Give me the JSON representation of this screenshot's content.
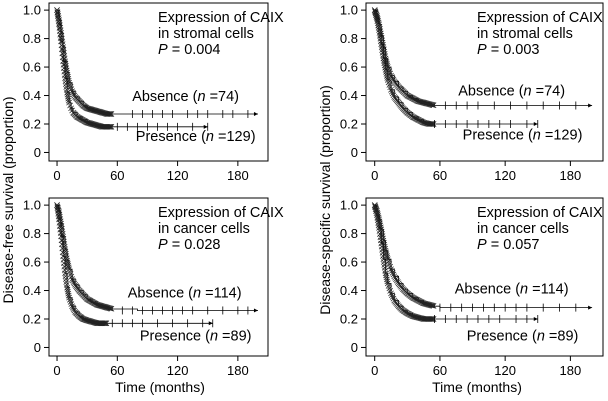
{
  "shared_ylabels": [
    "Disease-free survival (proportion)",
    "Disease-specific survival (proportion)"
  ],
  "shared_xlabel": "Time (months)",
  "chart_data": [
    {
      "type": "line",
      "subtype": "kaplan-meier",
      "ylabel": "Disease-free survival (proportion)",
      "xlabel": "",
      "xticks": [
        0,
        60,
        120,
        180
      ],
      "yticks": [
        0,
        0.2,
        0.4,
        0.6,
        0.8,
        1.0
      ],
      "ytick_labels": [
        "0",
        "0.2",
        "0.4",
        "0.6",
        "0.8",
        "1.0"
      ],
      "xlim": [
        -8,
        210
      ],
      "ylim": [
        -0.06,
        1.05
      ],
      "annotation": {
        "line1": "Expression of CAIX",
        "line2": "in stromal cells",
        "p_label": "P",
        "p_text": " = 0.004"
      },
      "series": [
        {
          "name": "Absence",
          "n": "74",
          "label_pre": "Absence (",
          "label_post": " =74)",
          "label_at": [
            128,
            0.36
          ],
          "x": [
            0,
            2,
            4,
            6,
            8,
            10,
            12,
            15,
            18,
            22,
            26,
            30,
            35,
            40,
            45,
            50,
            55,
            60,
            70,
            80,
            90,
            100,
            120,
            140,
            160,
            180,
            200
          ],
          "y": [
            1.0,
            0.93,
            0.84,
            0.74,
            0.64,
            0.56,
            0.49,
            0.43,
            0.39,
            0.36,
            0.33,
            0.31,
            0.3,
            0.29,
            0.28,
            0.27,
            0.27,
            0.27,
            0.27,
            0.27,
            0.27,
            0.27,
            0.27,
            0.27,
            0.27,
            0.27,
            0.27
          ],
          "censor_x": [
            75,
            85,
            95,
            105,
            115,
            130,
            140,
            150,
            165,
            175,
            190
          ],
          "end_x": 200
        },
        {
          "name": "Presence",
          "n": "129",
          "label_pre": "Presence (",
          "label_post": " =129)",
          "label_at": [
            138,
            0.08
          ],
          "x": [
            0,
            2,
            4,
            6,
            8,
            10,
            12,
            14,
            16,
            20,
            25,
            30,
            35,
            40,
            45,
            50,
            55,
            60,
            80,
            100,
            120,
            150
          ],
          "y": [
            1.0,
            0.9,
            0.78,
            0.64,
            0.52,
            0.42,
            0.35,
            0.31,
            0.28,
            0.25,
            0.23,
            0.21,
            0.2,
            0.19,
            0.18,
            0.18,
            0.18,
            0.18,
            0.18,
            0.18,
            0.18,
            0.18
          ],
          "censor_x": [
            60,
            70,
            80,
            90,
            100,
            110,
            120,
            135,
            150
          ],
          "end_x": 150
        }
      ]
    },
    {
      "type": "line",
      "subtype": "kaplan-meier",
      "ylabel": "Disease-specific survival (proportion)",
      "xlabel": "",
      "xticks": [
        0,
        60,
        120,
        180
      ],
      "yticks": [
        0,
        0.2,
        0.4,
        0.6,
        0.8,
        1.0
      ],
      "ytick_labels": [
        "0",
        "0.2",
        "0.4",
        "0.6",
        "0.8",
        "1.0"
      ],
      "xlim": [
        -8,
        210
      ],
      "ylim": [
        -0.06,
        1.05
      ],
      "annotation": {
        "line1": "Expression of CAIX",
        "line2": "in stromal cells",
        "p_label": "P",
        "p_text": " = 0.003"
      },
      "series": [
        {
          "name": "Absence",
          "n": "74",
          "label_pre": "Absence (",
          "label_post": " =74)",
          "label_at": [
            126,
            0.4
          ],
          "x": [
            0,
            2,
            4,
            6,
            8,
            10,
            12,
            15,
            18,
            22,
            26,
            30,
            35,
            40,
            45,
            50,
            55,
            60,
            70,
            80,
            100,
            120,
            140,
            160,
            180,
            200
          ],
          "y": [
            1.0,
            0.96,
            0.9,
            0.82,
            0.74,
            0.66,
            0.6,
            0.54,
            0.5,
            0.46,
            0.43,
            0.4,
            0.38,
            0.36,
            0.35,
            0.34,
            0.33,
            0.33,
            0.33,
            0.33,
            0.33,
            0.33,
            0.33,
            0.33,
            0.33,
            0.33
          ],
          "censor_x": [
            65,
            75,
            85,
            95,
            110,
            125,
            140,
            155,
            170,
            185
          ],
          "end_x": 200
        },
        {
          "name": "Presence",
          "n": "129",
          "label_pre": "Presence (",
          "label_post": " =129)",
          "label_at": [
            136,
            0.09
          ],
          "x": [
            0,
            2,
            4,
            6,
            8,
            10,
            12,
            15,
            18,
            22,
            26,
            30,
            35,
            40,
            45,
            50,
            55,
            60,
            80,
            100,
            120,
            150
          ],
          "y": [
            1.0,
            0.94,
            0.86,
            0.76,
            0.66,
            0.58,
            0.51,
            0.44,
            0.39,
            0.35,
            0.31,
            0.28,
            0.25,
            0.23,
            0.21,
            0.2,
            0.2,
            0.2,
            0.2,
            0.2,
            0.2,
            0.2
          ],
          "censor_x": [
            55,
            65,
            75,
            85,
            95,
            105,
            115,
            125,
            140,
            150
          ],
          "end_x": 150
        }
      ]
    },
    {
      "type": "line",
      "subtype": "kaplan-meier",
      "ylabel": "Disease-free survival (proportion)",
      "xlabel": "Time (months)",
      "xticks": [
        0,
        60,
        120,
        180
      ],
      "yticks": [
        0,
        0.2,
        0.4,
        0.6,
        0.8,
        1.0
      ],
      "ytick_labels": [
        "0",
        "0.2",
        "0.4",
        "0.6",
        "0.8",
        "1.0"
      ],
      "xlim": [
        -8,
        210
      ],
      "ylim": [
        -0.06,
        1.05
      ],
      "annotation": {
        "line1": "Expression of CAIX",
        "line2": "in cancer cells",
        "p_label": "P",
        "p_text": " = 0.028"
      },
      "series": [
        {
          "name": "Absence",
          "n": "114",
          "label_pre": "Absence (",
          "label_post": " =114)",
          "label_at": [
            127,
            0.35
          ],
          "x": [
            0,
            2,
            4,
            6,
            8,
            10,
            12,
            15,
            18,
            22,
            26,
            30,
            35,
            40,
            45,
            50,
            55,
            60,
            70,
            80,
            100,
            120,
            140,
            160,
            180,
            200
          ],
          "y": [
            1.0,
            0.95,
            0.87,
            0.78,
            0.69,
            0.61,
            0.55,
            0.48,
            0.44,
            0.4,
            0.37,
            0.34,
            0.32,
            0.3,
            0.29,
            0.28,
            0.27,
            0.27,
            0.27,
            0.26,
            0.26,
            0.26,
            0.26,
            0.26,
            0.26,
            0.26
          ],
          "censor_x": [
            65,
            75,
            85,
            95,
            105,
            115,
            125,
            135,
            150,
            165,
            180,
            190
          ],
          "end_x": 200
        },
        {
          "name": "Presence",
          "n": "89",
          "label_pre": "Presence (",
          "label_post": " =89)",
          "label_at": [
            138,
            0.05
          ],
          "x": [
            0,
            2,
            4,
            6,
            8,
            10,
            12,
            15,
            18,
            22,
            26,
            30,
            35,
            40,
            45,
            50,
            60,
            80,
            100,
            120,
            155
          ],
          "y": [
            1.0,
            0.9,
            0.78,
            0.64,
            0.52,
            0.42,
            0.35,
            0.29,
            0.25,
            0.22,
            0.2,
            0.19,
            0.18,
            0.17,
            0.17,
            0.17,
            0.17,
            0.17,
            0.17,
            0.17,
            0.17
          ],
          "censor_x": [
            55,
            65,
            75,
            85,
            100,
            115,
            130,
            145,
            155
          ],
          "end_x": 155
        }
      ]
    },
    {
      "type": "line",
      "subtype": "kaplan-meier",
      "ylabel": "Disease-specific survival (proportion)",
      "xlabel": "Time (months)",
      "xticks": [
        0,
        60,
        120,
        180
      ],
      "yticks": [
        0,
        0.2,
        0.4,
        0.6,
        0.8,
        1.0
      ],
      "ytick_labels": [
        "0",
        "0.2",
        "0.4",
        "0.6",
        "0.8",
        "1.0"
      ],
      "xlim": [
        -8,
        210
      ],
      "ylim": [
        -0.06,
        1.05
      ],
      "annotation": {
        "line1": "Expression of CAIX",
        "line2": "in cancer cells",
        "p_label": "P",
        "p_text": " = 0.057"
      },
      "series": [
        {
          "name": "Absence",
          "n": "114",
          "label_pre": "Absence (",
          "label_post": " =114)",
          "label_at": [
            126,
            0.38
          ],
          "x": [
            0,
            2,
            4,
            6,
            8,
            10,
            12,
            15,
            18,
            22,
            26,
            30,
            35,
            40,
            45,
            50,
            55,
            60,
            70,
            80,
            100,
            120,
            140,
            160,
            180,
            200
          ],
          "y": [
            1.0,
            0.96,
            0.9,
            0.83,
            0.75,
            0.68,
            0.62,
            0.55,
            0.5,
            0.45,
            0.41,
            0.38,
            0.35,
            0.33,
            0.31,
            0.3,
            0.29,
            0.28,
            0.28,
            0.28,
            0.28,
            0.28,
            0.28,
            0.28,
            0.28,
            0.28
          ],
          "censor_x": [
            60,
            70,
            80,
            90,
            100,
            110,
            120,
            130,
            140,
            155,
            170,
            185
          ],
          "end_x": 200
        },
        {
          "name": "Presence",
          "n": "89",
          "label_pre": "Presence (",
          "label_post": " =89)",
          "label_at": [
            136,
            0.05
          ],
          "x": [
            0,
            2,
            4,
            6,
            8,
            10,
            12,
            15,
            18,
            22,
            26,
            30,
            35,
            40,
            45,
            50,
            55,
            60,
            80,
            100,
            120,
            150
          ],
          "y": [
            1.0,
            0.93,
            0.84,
            0.73,
            0.62,
            0.52,
            0.45,
            0.38,
            0.33,
            0.29,
            0.26,
            0.24,
            0.22,
            0.21,
            0.2,
            0.2,
            0.2,
            0.2,
            0.2,
            0.2,
            0.2,
            0.2
          ],
          "censor_x": [
            55,
            65,
            75,
            85,
            95,
            105,
            115,
            130,
            140,
            150
          ],
          "end_x": 150
        }
      ]
    }
  ]
}
